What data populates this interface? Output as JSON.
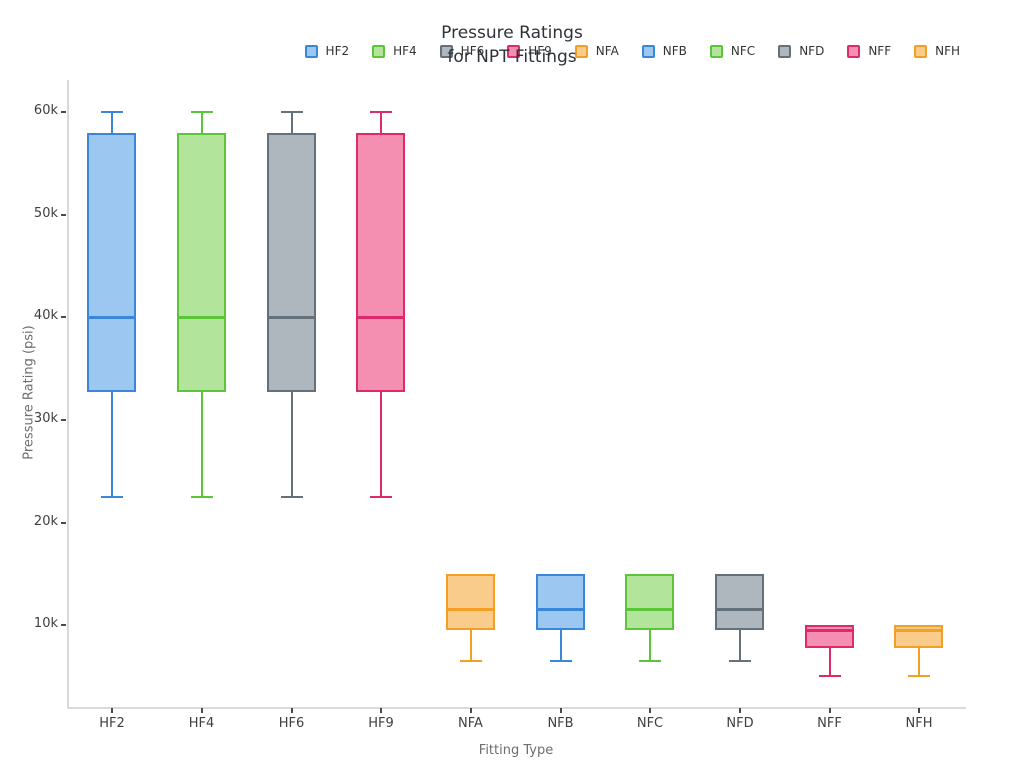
{
  "figure": {
    "title_line1": "Pressure Ratings",
    "title_line2": "for NPT Fittings"
  },
  "chart_data": {
    "type": "box",
    "title": "Pressure Ratings for NPT Fittings",
    "title_lines": [
      "Pressure Ratings",
      "for NPT Fittings"
    ],
    "xlabel": "Fitting Type",
    "ylabel": "Pressure Rating (psi)",
    "ylim": [
      2000,
      63100
    ],
    "grid": false,
    "legend_position": "top-right-horizontal",
    "y_ticks": [
      {
        "label": "10k",
        "value": 10000
      },
      {
        "label": "20k",
        "value": 20000
      },
      {
        "label": "30k",
        "value": 30000
      },
      {
        "label": "40k",
        "value": 40000
      },
      {
        "label": "50k",
        "value": 50000
      },
      {
        "label": "60k",
        "value": 60000
      }
    ],
    "categories": [
      "HF2",
      "HF4",
      "HF6",
      "HF9",
      "NFA",
      "NFB",
      "NFC",
      "NFD",
      "NFF",
      "NFH"
    ],
    "series": [
      {
        "label": "HF2",
        "line_color": "#3a86d8",
        "fill_color": "#9cc7f0",
        "min": 22500,
        "q1": 32750,
        "median": 40000,
        "q3": 58000,
        "max": 60000
      },
      {
        "label": "HF4",
        "line_color": "#5cc438",
        "fill_color": "#b3e49c",
        "min": 22500,
        "q1": 32750,
        "median": 40000,
        "q3": 58000,
        "max": 60000
      },
      {
        "label": "HF6",
        "line_color": "#64707a",
        "fill_color": "#aeb7be",
        "min": 22500,
        "q1": 32750,
        "median": 40000,
        "q3": 58000,
        "max": 60000
      },
      {
        "label": "HF9",
        "line_color": "#dd2a6d",
        "fill_color": "#f48fb1",
        "min": 22500,
        "q1": 32750,
        "median": 40000,
        "q3": 58000,
        "max": 60000
      },
      {
        "label": "NFA",
        "line_color": "#f29f26",
        "fill_color": "#facc8c",
        "min": 6500,
        "q1": 9500,
        "median": 11500,
        "q3": 15000,
        "max": 15000
      },
      {
        "label": "NFB",
        "line_color": "#3a86d8",
        "fill_color": "#9cc7f0",
        "min": 6500,
        "q1": 9500,
        "median": 11500,
        "q3": 15000,
        "max": 15000
      },
      {
        "label": "NFC",
        "line_color": "#5cc438",
        "fill_color": "#b3e49c",
        "min": 6500,
        "q1": 9500,
        "median": 11500,
        "q3": 15000,
        "max": 15000
      },
      {
        "label": "NFD",
        "line_color": "#64707a",
        "fill_color": "#aeb7be",
        "min": 6500,
        "q1": 9500,
        "median": 11500,
        "q3": 15000,
        "max": 15000
      },
      {
        "label": "NFF",
        "line_color": "#dd2a6d",
        "fill_color": "#f48fb1",
        "min": 5000,
        "q1": 7750,
        "median": 9500,
        "q3": 10000,
        "max": 10000
      },
      {
        "label": "NFH",
        "line_color": "#f29f26",
        "fill_color": "#facc8c",
        "min": 5000,
        "q1": 7750,
        "median": 9500,
        "q3": 10000,
        "max": 10000
      }
    ]
  }
}
